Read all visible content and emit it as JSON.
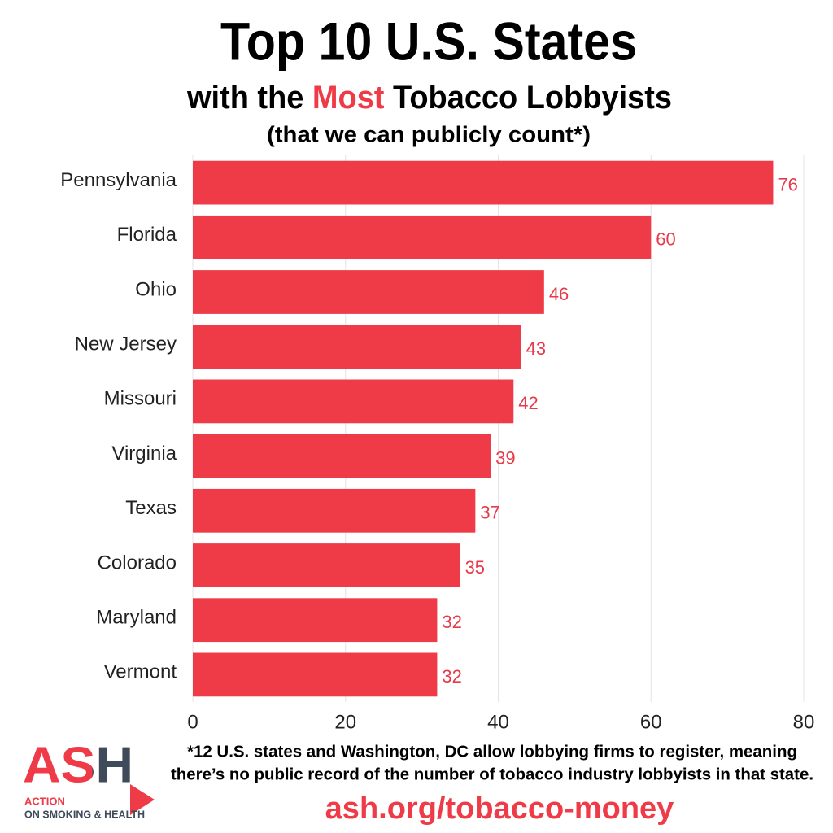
{
  "chart_data": {
    "type": "bar",
    "orientation": "horizontal",
    "title": "Top 10 U.S. States",
    "subtitle": [
      "with the ",
      "Most",
      " Tobacco Lobbyists"
    ],
    "subtitle2": "(that we can publicly count*)",
    "categories": [
      "Pennsylvania",
      "Florida",
      "Ohio",
      "New Jersey",
      "Missouri",
      "Virginia",
      "Texas",
      "Colorado",
      "Maryland",
      "Vermont"
    ],
    "values": [
      76,
      60,
      46,
      43,
      42,
      39,
      37,
      35,
      32,
      32
    ],
    "color": "#ef3b47",
    "xlim": [
      0,
      80
    ],
    "xticks": [
      0,
      20,
      40,
      60,
      80
    ],
    "grid": true,
    "footnote": [
      "*12 U.S. states and Washington, DC allow lobbying firms to register, meaning",
      "there’s no public record of the number of tobacco industry lobbyists in that state."
    ],
    "url": "ash.org/tobacco-money",
    "logo": {
      "mark": "ASH",
      "line1": "ACTION",
      "line2": "ON SMOKING & HEALTH"
    }
  }
}
